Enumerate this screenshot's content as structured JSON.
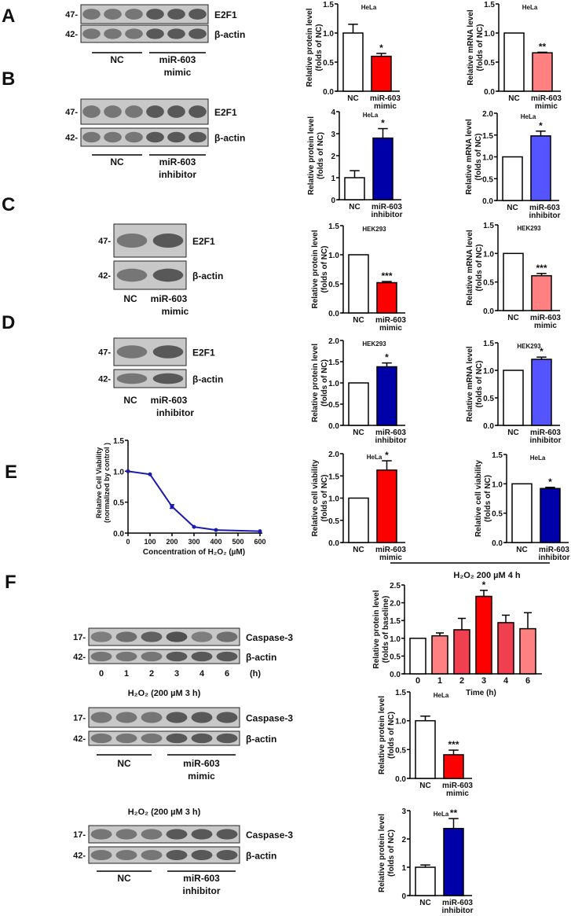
{
  "panel_letters": [
    "A",
    "B",
    "C",
    "D",
    "E",
    "F"
  ],
  "blots": [
    {
      "rows": [
        {
          "marker": "47-",
          "label": "E2F1"
        },
        {
          "marker": "42-",
          "label": "β-actin"
        }
      ],
      "groups": [
        {
          "lines": [
            "NC"
          ]
        },
        {
          "lines": [
            "miR-603",
            "mimic"
          ]
        }
      ]
    },
    {
      "rows": [
        {
          "marker": "47-",
          "label": "E2F1"
        },
        {
          "marker": "42-",
          "label": "β-actin"
        }
      ],
      "groups": [
        {
          "lines": [
            "NC"
          ]
        },
        {
          "lines": [
            "miR-603",
            "inhibitor"
          ]
        }
      ]
    },
    {
      "rows": [
        {
          "marker": "47-",
          "label": "E2F1"
        },
        {
          "marker": "42-",
          "label": "β-actin"
        }
      ],
      "groups": [
        {
          "lines": [
            "NC"
          ]
        },
        {
          "lines": [
            "miR-603",
            "mimic"
          ]
        }
      ]
    },
    {
      "rows": [
        {
          "marker": "47-",
          "label": "E2F1"
        },
        {
          "marker": "42-",
          "label": "β-actin"
        }
      ],
      "groups": [
        {
          "lines": [
            "NC"
          ]
        },
        {
          "lines": [
            "miR-603",
            "inhibitor"
          ]
        }
      ]
    },
    {
      "rows": [
        {
          "marker": "17-",
          "label": "Caspase-3"
        },
        {
          "marker": "42-",
          "label": "β-actin"
        }
      ],
      "lane_labels": [
        "0",
        "1",
        "2",
        "3",
        "4",
        "6",
        "(h)"
      ]
    },
    {
      "title": "H₂O₂ (200 µM  3 h)",
      "rows": [
        {
          "marker": "17-",
          "label": "Caspase-3"
        },
        {
          "marker": "42-",
          "label": "β-actin"
        }
      ],
      "groups": [
        {
          "lines": [
            "NC"
          ]
        },
        {
          "lines": [
            "miR-603",
            "mimic"
          ]
        }
      ]
    },
    {
      "title": "H₂O₂ (200 µM  3 h)",
      "rows": [
        {
          "marker": "17-",
          "label": "Caspase-3"
        },
        {
          "marker": "42-",
          "label": "β-actin"
        }
      ],
      "groups": [
        {
          "lines": [
            "NC"
          ]
        },
        {
          "lines": [
            "miR-603",
            "inhibitor"
          ]
        }
      ]
    }
  ],
  "treatment_header": "H₂O₂ 200 µM 4 h",
  "colors": {
    "red": "#ff0000",
    "pink": "#ff8080",
    "navy": "#0000a8",
    "blue": "#5555ff",
    "line": "#1a1ab0"
  },
  "chart_data": [
    {
      "type": "bar",
      "subtitle": "HeLa",
      "ylabel": [
        "Relative protein level",
        "(folds of NC)"
      ],
      "categories": [
        [
          "NC"
        ],
        [
          "miR-603",
          "mimic"
        ]
      ],
      "values": [
        1.0,
        0.6
      ],
      "errors": [
        0.15,
        0.05
      ],
      "sig": [
        "",
        "*"
      ],
      "colors": [
        "#ffffff",
        "#ff0000"
      ],
      "ylim": [
        0,
        1.5
      ],
      "yticks": [
        "0.0",
        "0.5",
        "1.0",
        "1.5"
      ]
    },
    {
      "type": "bar",
      "subtitle": "HeLa",
      "ylabel": [
        "Relative mRNA level",
        "(folds of NC)"
      ],
      "categories": [
        [
          "NC"
        ],
        [
          "miR-603",
          "mimic"
        ]
      ],
      "values": [
        1.0,
        0.66
      ],
      "errors": [
        0,
        0.01
      ],
      "sig": [
        "",
        "**"
      ],
      "colors": [
        "#ffffff",
        "#ff8080"
      ],
      "ylim": [
        0,
        1.5
      ],
      "yticks": [
        "0.0",
        "0.5",
        "1.0",
        "1.5"
      ]
    },
    {
      "type": "bar",
      "subtitle": "HeLa",
      "ylabel": [
        "Relative protein level",
        "(folds of NC)"
      ],
      "categories": [
        [
          "NC"
        ],
        [
          "miR-603",
          "inhibitor"
        ]
      ],
      "values": [
        1.0,
        2.8
      ],
      "errors": [
        0.32,
        0.43
      ],
      "sig": [
        "",
        "*"
      ],
      "colors": [
        "#ffffff",
        "#0000a8"
      ],
      "ylim": [
        0,
        4
      ],
      "yticks": [
        "0",
        "1",
        "2",
        "3",
        "4"
      ]
    },
    {
      "type": "bar",
      "subtitle": "HeLa",
      "ylabel": [
        "Relative mRNA level",
        "(folds of NC)"
      ],
      "categories": [
        [
          "NC"
        ],
        [
          "miR-603",
          "inhibitor"
        ]
      ],
      "values": [
        1.0,
        1.48
      ],
      "errors": [
        0,
        0.11
      ],
      "sig": [
        "",
        "*"
      ],
      "colors": [
        "#ffffff",
        "#5555ff"
      ],
      "ylim": [
        0,
        2
      ],
      "yticks": [
        "0.0",
        "0.5",
        "1.0",
        "1.5",
        "2.0"
      ]
    },
    {
      "type": "bar",
      "subtitle": "HEK293",
      "ylabel": [
        "Relative protein level",
        "(folds of  NC)"
      ],
      "categories": [
        [
          "NC"
        ],
        [
          "miR-603",
          "mimic"
        ]
      ],
      "values": [
        1.0,
        0.52
      ],
      "errors": [
        0,
        0.02
      ],
      "sig": [
        "",
        "***"
      ],
      "colors": [
        "#ffffff",
        "#ff0000"
      ],
      "ylim": [
        0,
        1.5
      ],
      "yticks": [
        "0.0",
        "0.5",
        "1.0",
        "1.5"
      ]
    },
    {
      "type": "bar",
      "subtitle": "HEK293",
      "ylabel": [
        "Relative mRNA level",
        "(folds of  NC)"
      ],
      "categories": [
        [
          "NC"
        ],
        [
          "miR-603",
          "mimic"
        ]
      ],
      "values": [
        1.0,
        0.61
      ],
      "errors": [
        0,
        0.04
      ],
      "sig": [
        "",
        "***"
      ],
      "colors": [
        "#ffffff",
        "#ff8080"
      ],
      "ylim": [
        0,
        1.5
      ],
      "yticks": [
        "0.0",
        "0.5",
        "1.0",
        "1.5"
      ]
    },
    {
      "type": "bar",
      "subtitle": "HEK293",
      "ylabel": [
        "Relative protein level",
        "(folds of NC)"
      ],
      "categories": [
        [
          "NC"
        ],
        [
          "miR-603",
          "inhibitor"
        ]
      ],
      "values": [
        1.0,
        1.38
      ],
      "errors": [
        0,
        0.09
      ],
      "sig": [
        "",
        "*"
      ],
      "colors": [
        "#ffffff",
        "#0000a8"
      ],
      "ylim": [
        0,
        2
      ],
      "yticks": [
        "0.0",
        "0.5",
        "1.0",
        "1.5",
        "2.0"
      ]
    },
    {
      "type": "bar",
      "subtitle": "HEK293",
      "ylabel": [
        "Relative mRNA level",
        "(folds of  NC)"
      ],
      "categories": [
        [
          "NC"
        ],
        [
          "miR-603",
          "inhibitor"
        ]
      ],
      "values": [
        1.0,
        1.2
      ],
      "errors": [
        0,
        0.04
      ],
      "sig": [
        "",
        "*"
      ],
      "colors": [
        "#ffffff",
        "#5555ff"
      ],
      "ylim": [
        0,
        1.5
      ],
      "yticks": [
        "0.0",
        "0.5",
        "1.0",
        "1.5"
      ]
    },
    {
      "type": "bar",
      "subtitle": "HeLa",
      "ylabel": [
        "Relative cell viability",
        "(folds of  NC)"
      ],
      "categories": [
        [
          "NC"
        ],
        [
          "miR-603",
          "mimic"
        ]
      ],
      "values": [
        1.0,
        1.63
      ],
      "errors": [
        0,
        0.21
      ],
      "sig": [
        "",
        "*"
      ],
      "colors": [
        "#ffffff",
        "#ff0000"
      ],
      "ylim": [
        0,
        2
      ],
      "yticks": [
        "0.0",
        "0.5",
        "1.0",
        "1.5",
        "2.0"
      ]
    },
    {
      "type": "bar",
      "subtitle": "HeLa",
      "ylabel": [
        "Relative cell viability",
        "(folds of  NC)"
      ],
      "categories": [
        [
          "NC"
        ],
        [
          "miR-603",
          "inhibitor"
        ]
      ],
      "values": [
        1.0,
        0.92
      ],
      "errors": [
        0,
        0.02
      ],
      "sig": [
        "",
        "*"
      ],
      "colors": [
        "#ffffff",
        "#0000a8"
      ],
      "ylim": [
        0,
        1.5
      ],
      "yticks": [
        "0.0",
        "0.5",
        "1.0",
        "1.5"
      ]
    },
    {
      "type": "line",
      "ylabel": [
        "Relative Cell Viability",
        "(normalized by control )"
      ],
      "xlabel": "Concentration of H₂O₂ (µM)",
      "x": [
        0,
        100,
        200,
        300,
        400,
        600
      ],
      "y": [
        1.0,
        0.95,
        0.43,
        0.1,
        0.05,
        0.03
      ],
      "errors": [
        0,
        0.01,
        0.03,
        0.01,
        0.01,
        0.01
      ],
      "xlim": [
        0,
        600
      ],
      "ylim": [
        0,
        1.5
      ],
      "xticks": [
        "0",
        "100",
        "200",
        "300",
        "400",
        "500",
        "600"
      ],
      "yticks": [
        "0.0",
        "0.5",
        "1.0",
        "1.5"
      ]
    },
    {
      "type": "bar",
      "ylabel": [
        "Relative protein level",
        "(folds of baseline)"
      ],
      "xlabel": "Time (h)",
      "categories": [
        [
          "0"
        ],
        [
          "1"
        ],
        [
          "2"
        ],
        [
          "3"
        ],
        [
          "4"
        ],
        [
          "6"
        ]
      ],
      "values": [
        1.0,
        1.07,
        1.24,
        2.18,
        1.44,
        1.27
      ],
      "errors": [
        0,
        0.08,
        0.32,
        0.17,
        0.21,
        0.45
      ],
      "sig": [
        "",
        "",
        "",
        "*",
        "",
        ""
      ],
      "colors": [
        "#ffffff",
        "#ff8080",
        "#f04050",
        "#ff0000",
        "#f04050",
        "#ff8080"
      ],
      "ylim": [
        0,
        2.5
      ],
      "yticks": [
        "0.0",
        "0.5",
        "1.0",
        "1.5",
        "2.0",
        "2.5"
      ]
    },
    {
      "type": "bar",
      "subtitle": "HeLa",
      "ylabel": [
        "Relative protein level",
        "(folds of  NC)"
      ],
      "categories": [
        [
          "NC"
        ],
        [
          "miR-603",
          "mimic"
        ]
      ],
      "values": [
        1.0,
        0.41
      ],
      "errors": [
        0.08,
        0.08
      ],
      "sig": [
        "",
        "***"
      ],
      "colors": [
        "#ffffff",
        "#ff0000"
      ],
      "ylim": [
        0,
        1.5
      ],
      "yticks": [
        "0.0",
        "0.5",
        "1.0",
        "1.5"
      ]
    },
    {
      "type": "bar",
      "subtitle": "HeLa",
      "ylabel": [
        "Relative protein level",
        "(folds of  NC)"
      ],
      "categories": [
        [
          "NC"
        ],
        [
          "miR-603",
          "inhibitor"
        ]
      ],
      "values": [
        1.0,
        2.37
      ],
      "errors": [
        0.08,
        0.35
      ],
      "sig": [
        "",
        "**"
      ],
      "colors": [
        "#ffffff",
        "#0000a8"
      ],
      "ylim": [
        0,
        3
      ],
      "yticks": [
        "0",
        "1",
        "2",
        "3"
      ]
    }
  ]
}
